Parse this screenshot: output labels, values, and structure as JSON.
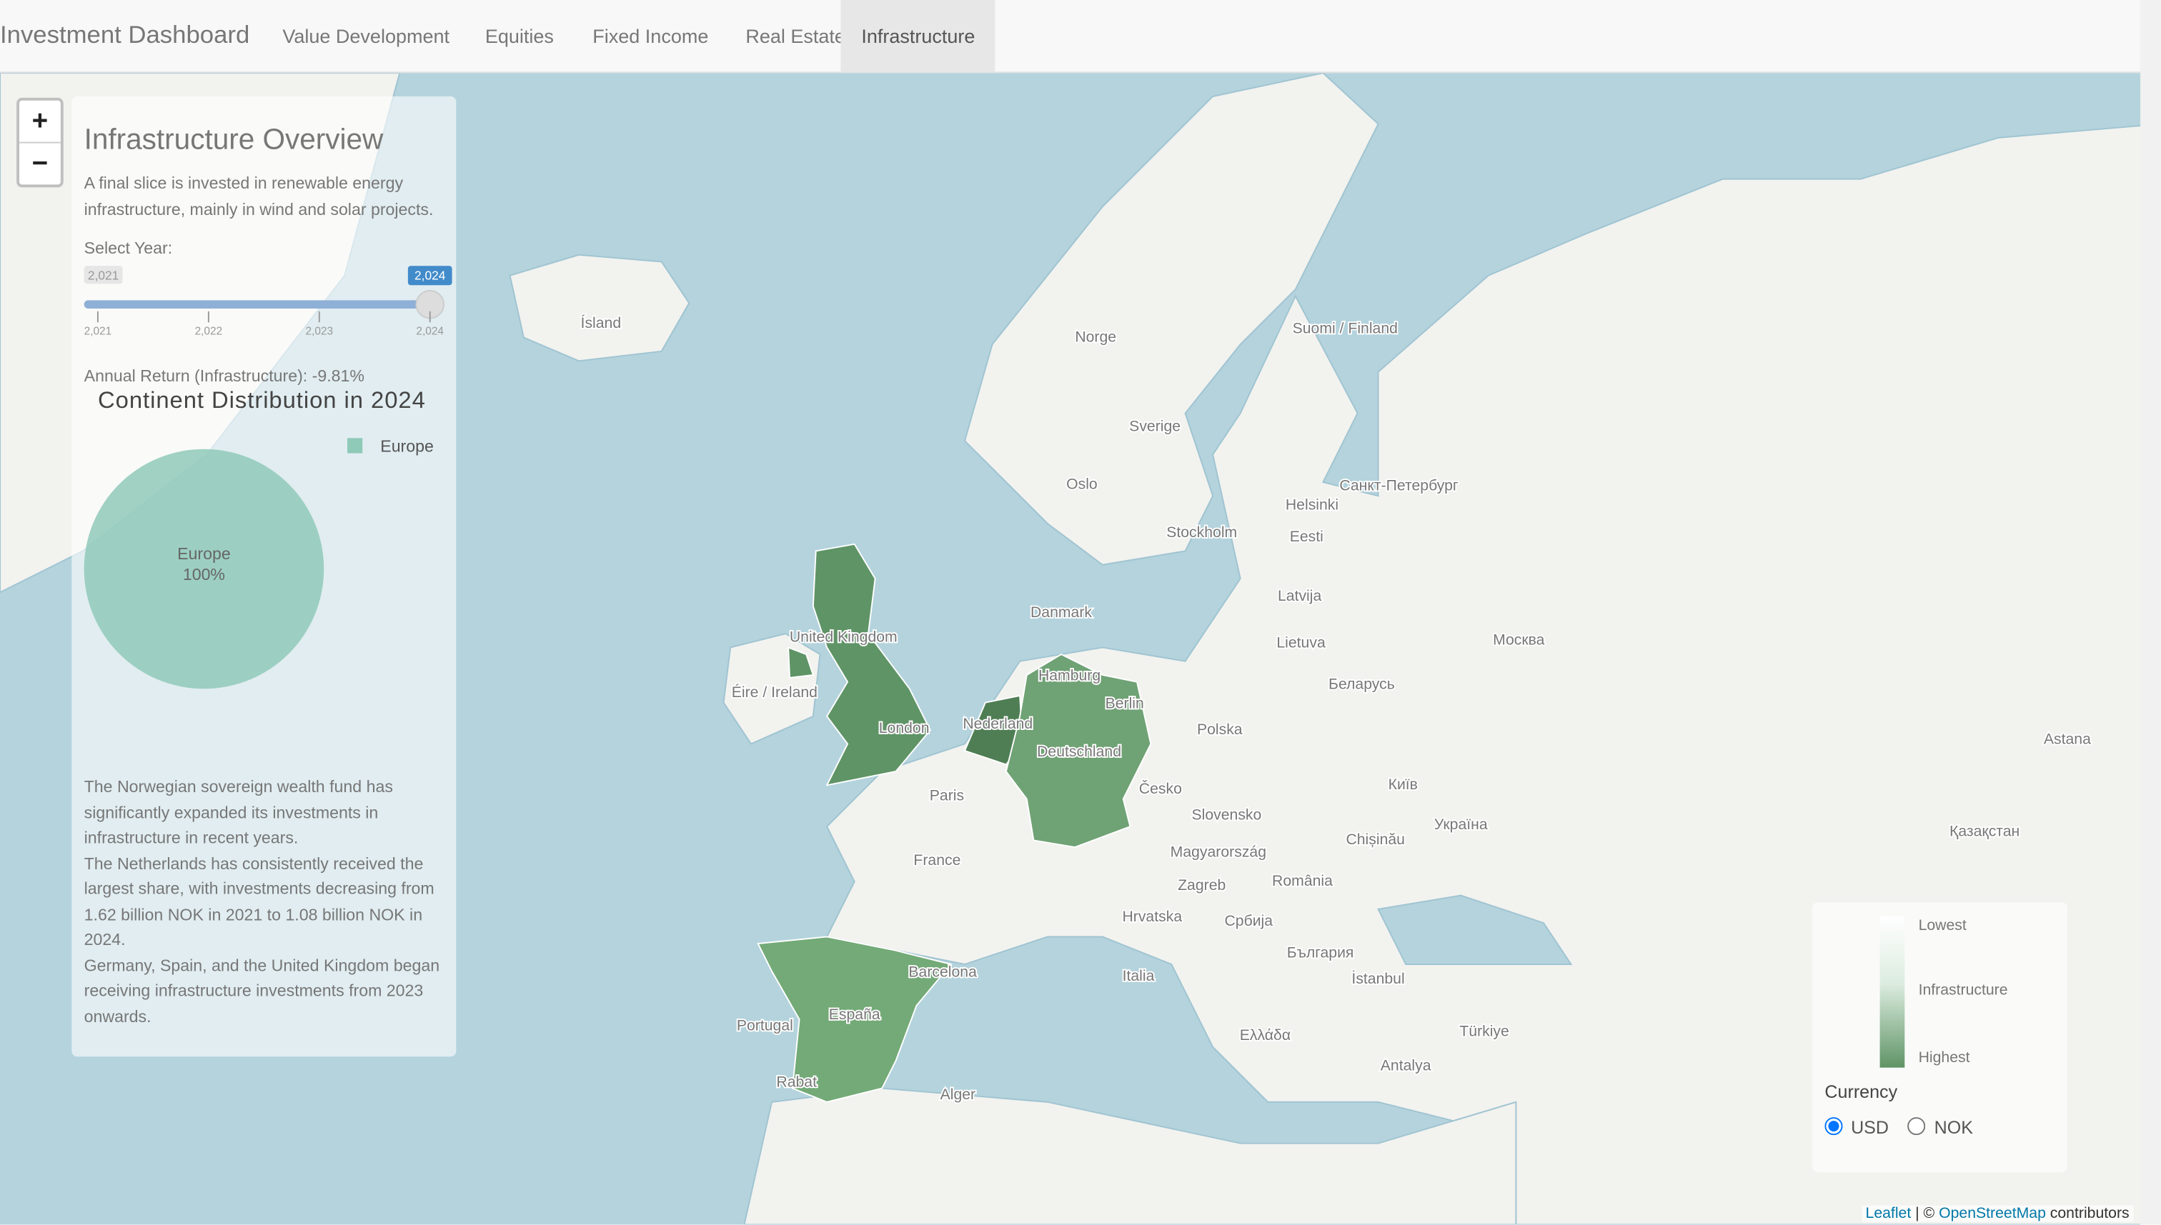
{
  "navbar": {
    "brand": "Investment Dashboard",
    "items": [
      "Value Development",
      "Equities",
      "Fixed Income",
      "Real Estate",
      "Infrastructure"
    ],
    "active": "Infrastructure"
  },
  "zoom": [
    "+",
    "−"
  ],
  "panel": {
    "title": "Infrastructure Overview",
    "intro": "A final slice is invested in renewable energy infrastructure, mainly in wind and solar projects.",
    "select_label": "Select Year:",
    "slider": {
      "min": {
        "value": 2021,
        "label": "2,021"
      },
      "value": {
        "value": 2024,
        "label": "2,024"
      },
      "ticks": [
        {
          "value": 2021,
          "label": "2,021"
        },
        {
          "value": 2022,
          "label": "2,022"
        },
        {
          "value": 2023,
          "label": "2,023"
        },
        {
          "value": 2024,
          "label": "2,024"
        }
      ]
    },
    "annual_return": "Annual Return (Infrastructure): -9.81%",
    "notes": [
      "The Norwegian sovereign wealth fund has significantly expanded its investments in infrastructure in recent years.",
      "The Netherlands has consistently received the largest share, with investments decreasing from 1.62 billion NOK in 2021 to 1.08 billion NOK in 2024.",
      "Germany, Spain, and the United Kingdom began receiving infrastructure investments from 2023 onwards."
    ]
  },
  "pie": {
    "type": "pie",
    "title": "Continent Distribution in 2024",
    "categories": [
      "Europe"
    ],
    "values": [
      100
    ],
    "value_labels": [
      "100%"
    ],
    "color": "#8fc9b8"
  },
  "legend": {
    "labels": [
      "Lowest",
      "Infrastructure",
      "Highest"
    ]
  },
  "currency": {
    "title": "Currency",
    "options": [
      "USD",
      "NOK"
    ],
    "selected": "USD"
  },
  "attribution": {
    "link1": "Leaflet",
    "separator": "| ©",
    "link2": "OpenStreetMap",
    "suffix": "contributors"
  },
  "map_labels": [
    "Ísland",
    "Norge",
    "Suomi / Finland",
    "Sverige",
    "Oslo",
    "Stockholm",
    "Helsinki",
    "Санкт-Петербург",
    "Eesti",
    "Latvija",
    "Danmark",
    "Lietuva",
    "Москва",
    "United Kingdom",
    "Éire / Ireland",
    "London",
    "Nederland",
    "Hamburg",
    "Berlin",
    "Deutschland",
    "Беларусь",
    "Polska",
    "Paris",
    "Česko",
    "Slovensko",
    "Україна",
    "Київ",
    "France",
    "Magyarország",
    "Chișinău",
    "Zagreb",
    "România",
    "Hrvatska",
    "Србија",
    "България",
    "Italia",
    "İstanbul",
    "España",
    "Barcelona",
    "Portugal",
    "Türkiye",
    "Ελλάδα",
    "Antalya",
    "Rabat",
    "Alger",
    "Astana",
    "Қазақстан"
  ]
}
